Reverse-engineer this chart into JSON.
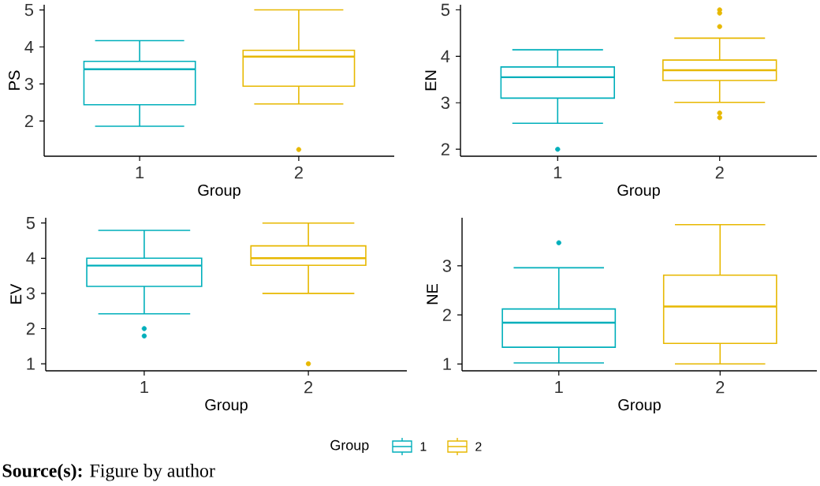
{
  "chart_data": [
    {
      "type": "box",
      "categories": [
        "1",
        "2"
      ],
      "xlabel": "Group",
      "ylabel": "PS",
      "ylim": [
        1.05,
        5.14
      ],
      "yticks": [
        2,
        3,
        4,
        5
      ],
      "series": [
        {
          "color": "#00afbb",
          "boxes": [
            {
              "low": 1.86,
              "q1": 2.44,
              "median": 3.4,
              "q3": 3.61,
              "high": 4.17
            },
            null
          ]
        },
        {
          "color": "#e7b800",
          "boxes": [
            null,
            {
              "low": 2.46,
              "q1": 2.94,
              "median": 3.74,
              "q3": 3.91,
              "high": 5.0,
              "outliers": [
                1.23
              ]
            }
          ]
        }
      ]
    },
    {
      "type": "box",
      "categories": [
        "1",
        "2"
      ],
      "xlabel": "Group",
      "ylabel": "EN",
      "ylim": [
        1.85,
        5.11
      ],
      "yticks": [
        2,
        3,
        4,
        5
      ],
      "series": [
        {
          "color": "#00afbb",
          "boxes": [
            {
              "low": 2.56,
              "q1": 3.1,
              "median": 3.55,
              "q3": 3.77,
              "high": 4.14,
              "outliers": [
                2.0
              ]
            },
            null
          ]
        },
        {
          "color": "#e7b800",
          "boxes": [
            null,
            {
              "low": 3.01,
              "q1": 3.48,
              "median": 3.7,
              "q3": 3.92,
              "high": 4.39,
              "outliers": [
                5.0,
                4.93,
                4.64,
                2.78,
                2.68
              ]
            }
          ]
        }
      ]
    },
    {
      "type": "box",
      "categories": [
        "1",
        "2"
      ],
      "xlabel": "Group",
      "ylabel": "EV",
      "ylim": [
        0.8,
        5.15
      ],
      "yticks": [
        1,
        2,
        3,
        4,
        5
      ],
      "series": [
        {
          "color": "#00afbb",
          "boxes": [
            {
              "low": 2.42,
              "q1": 3.2,
              "median": 3.79,
              "q3": 4.0,
              "high": 4.79,
              "outliers": [
                2.0,
                1.79
              ]
            },
            null
          ]
        },
        {
          "color": "#e7b800",
          "boxes": [
            null,
            {
              "low": 3.0,
              "q1": 3.8,
              "median": 4.0,
              "q3": 4.35,
              "high": 5.0,
              "outliers": [
                1.0
              ]
            }
          ]
        }
      ]
    },
    {
      "type": "box",
      "categories": [
        "1",
        "2"
      ],
      "xlabel": "Group",
      "ylabel": "NE",
      "ylim": [
        0.86,
        3.98
      ],
      "yticks": [
        1,
        2,
        3
      ],
      "legend": "bottom",
      "legend_title": "Group",
      "annotations": [
        "**Source(s):** Figure by author"
      ],
      "series": [
        {
          "name": "1",
          "color": "#00afbb",
          "boxes": [
            {
              "low": 1.02,
              "q1": 1.34,
              "median": 1.84,
              "q3": 2.12,
              "high": 2.96,
              "outliers": [
                3.47
              ]
            },
            null
          ]
        },
        {
          "name": "2",
          "color": "#e7b800",
          "boxes": [
            null,
            {
              "low": 1.0,
              "q1": 1.42,
              "median": 2.17,
              "q3": 2.81,
              "high": 3.84
            }
          ]
        }
      ]
    }
  ]
}
